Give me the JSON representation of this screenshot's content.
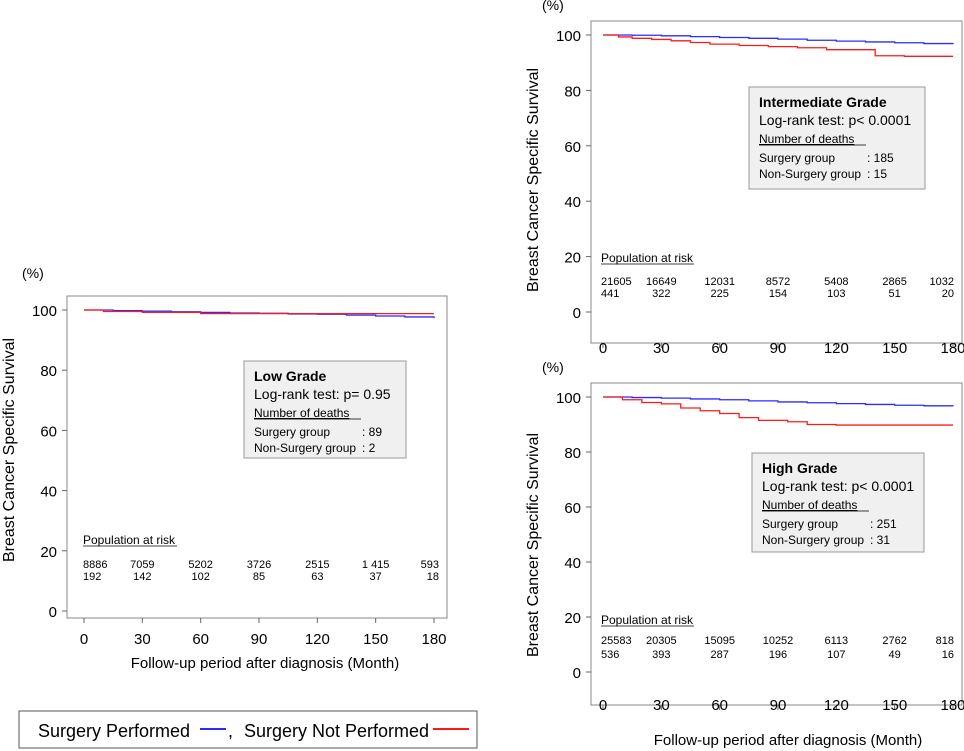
{
  "colors": {
    "surgery": "#2b2bff",
    "no_surgery": "#ff1a1a",
    "box_fill": "#f0f0f0",
    "box_stroke": "#999999"
  },
  "legend": {
    "surgery_label": "Surgery Performed",
    "separator": ", ",
    "no_surgery_label": "Surgery Not Performed"
  },
  "chart_data": [
    {
      "type": "line",
      "step": true,
      "title": "Low Grade",
      "xlabel": "Follow-up period after diagnosis (Month)",
      "ylabel": "Breast Cancer Specific Survival",
      "yunit": "(%)",
      "xlim": [
        0,
        180
      ],
      "ylim": [
        0,
        100
      ],
      "xticks": [
        "0",
        "30",
        "60",
        "90",
        "120",
        "150",
        "180"
      ],
      "yticks": [
        "0",
        "20",
        "40",
        "60",
        "80",
        "100"
      ],
      "stats": {
        "test": "Log-rank test: p=  0.95",
        "deaths_header": "Number of deaths",
        "surgery_label": "Surgery group",
        "surgery_deaths": ": 89",
        "nonsurgery_label": "Non-Surgery group",
        "nonsurgery_deaths": ": 2"
      },
      "risk_title": "Population at risk",
      "risk_surgery": [
        "8886",
        "7059",
        "5202",
        "3726",
        "2515",
        "1 415",
        "593"
      ],
      "risk_nonsurgery": [
        "192",
        "142",
        "102",
        "85",
        "63",
        "37",
        "18"
      ],
      "series": [
        {
          "name": "Surgery Performed",
          "x": [
            0,
            15,
            30,
            45,
            60,
            75,
            90,
            105,
            120,
            135,
            150,
            165,
            180
          ],
          "y": [
            100,
            99.8,
            99.6,
            99.4,
            99.2,
            99.0,
            98.9,
            98.7,
            98.6,
            98.3,
            98.0,
            97.7,
            97.3
          ]
        },
        {
          "name": "Surgery Not Performed",
          "x": [
            0,
            10,
            30,
            60,
            180
          ],
          "y": [
            100,
            99.5,
            99.2,
            98.8,
            98.8
          ]
        }
      ]
    },
    {
      "type": "line",
      "step": true,
      "title": "Intermediate Grade",
      "xlabel": "",
      "ylabel": "Breast Cancer Specific Survival",
      "yunit": "(%)",
      "xlim": [
        0,
        180
      ],
      "ylim": [
        0,
        100
      ],
      "xticks": [
        "0",
        "30",
        "60",
        "90",
        "120",
        "150",
        "180"
      ],
      "yticks": [
        "0",
        "20",
        "40",
        "60",
        "80",
        "100"
      ],
      "stats": {
        "test": "Log-rank test: p<  0.0001",
        "deaths_header": "Number of deaths",
        "surgery_label": "Surgery group",
        "surgery_deaths": ": 185",
        "nonsurgery_label": "Non-Surgery group",
        "nonsurgery_deaths": ": 15"
      },
      "risk_title": "Population at risk",
      "risk_surgery": [
        "21605",
        "16649",
        "12031",
        "8572",
        "5408",
        "2865",
        "1032"
      ],
      "risk_nonsurgery": [
        "441",
        "322",
        "225",
        "154",
        "103",
        "51",
        "20"
      ],
      "series": [
        {
          "name": "Surgery Performed",
          "x": [
            0,
            15,
            30,
            45,
            60,
            75,
            90,
            105,
            120,
            135,
            150,
            165,
            180
          ],
          "y": [
            100,
            99.9,
            99.7,
            99.4,
            99.1,
            98.8,
            98.5,
            98.1,
            97.8,
            97.5,
            97.2,
            96.9,
            96.7
          ]
        },
        {
          "name": "Surgery Not Performed",
          "x": [
            0,
            8,
            15,
            25,
            35,
            45,
            55,
            70,
            85,
            100,
            115,
            140,
            155,
            180
          ],
          "y": [
            100,
            99.3,
            98.8,
            98.4,
            97.9,
            97.3,
            96.7,
            96.2,
            95.8,
            95.4,
            94.7,
            92.5,
            92.3,
            92.3
          ]
        }
      ]
    },
    {
      "type": "line",
      "step": true,
      "title": "High Grade",
      "xlabel": "Follow-up period after diagnosis (Month)",
      "ylabel": "Breast Cancer Specific Survival",
      "yunit": "(%)",
      "xlim": [
        0,
        180
      ],
      "ylim": [
        0,
        100
      ],
      "xticks": [
        "0",
        "30",
        "60",
        "90",
        "120",
        "150",
        "180"
      ],
      "yticks": [
        "0",
        "20",
        "40",
        "60",
        "80",
        "100"
      ],
      "stats": {
        "test": "Log-rank test: p<  0.0001",
        "deaths_header": "Number of deaths",
        "surgery_label": "Surgery group",
        "surgery_deaths": ": 251",
        "nonsurgery_label": "Non-Surgery group",
        "nonsurgery_deaths": ": 31"
      },
      "risk_title": "Population at risk",
      "risk_surgery": [
        "25583",
        "20305",
        "15095",
        "10252",
        "6113",
        "2762",
        "818"
      ],
      "risk_nonsurgery": [
        "536",
        "393",
        "287",
        "196",
        "107",
        "49",
        "16"
      ],
      "series": [
        {
          "name": "Surgery Performed",
          "x": [
            0,
            15,
            30,
            45,
            60,
            75,
            90,
            105,
            120,
            135,
            150,
            165,
            180
          ],
          "y": [
            100,
            99.8,
            99.6,
            99.3,
            99.0,
            98.6,
            98.2,
            97.9,
            97.6,
            97.3,
            97.0,
            96.8,
            96.6
          ]
        },
        {
          "name": "Surgery Not Performed",
          "x": [
            0,
            10,
            20,
            30,
            40,
            50,
            60,
            70,
            80,
            95,
            105,
            120,
            180
          ],
          "y": [
            100,
            99.0,
            98.0,
            97.5,
            96.0,
            95.0,
            94.0,
            92.5,
            91.5,
            91.0,
            90.0,
            89.8,
            89.8
          ]
        }
      ]
    }
  ]
}
